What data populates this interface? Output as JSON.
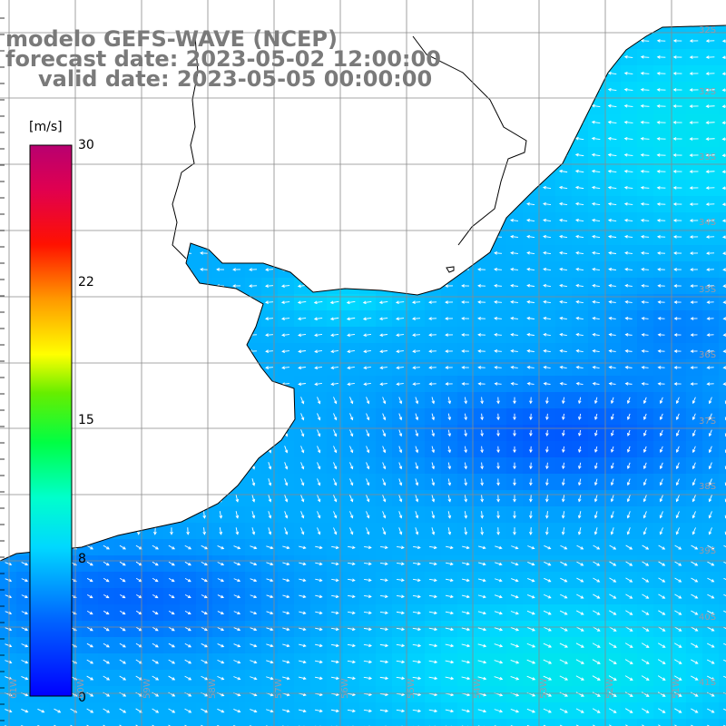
{
  "title": {
    "model": "modelo GEFS-WAVE (NCEP)",
    "forecast": "forecast date: 2023-05-02 12:00:00",
    "valid": "valid date: 2023-05-05 00:00:00"
  },
  "colorbar": {
    "unit": "[m/s]",
    "ticks": [
      "30",
      "22",
      "15",
      "8",
      "0"
    ],
    "tick_values": [
      30,
      22,
      15,
      8,
      0
    ],
    "range": [
      0,
      30
    ],
    "colors": [
      "#0000ff",
      "#00aaff",
      "#00e5ff",
      "#00ff66",
      "#44dd00",
      "#ffff00",
      "#ff9900",
      "#ff2200",
      "#e0004a",
      "#b00070"
    ]
  },
  "lat_labels": [
    "32S",
    "33S",
    "34S",
    "35S",
    "36S",
    "37S",
    "38S",
    "39S",
    "40S",
    "41S"
  ],
  "lon_labels": [
    "61W",
    "60W",
    "59W",
    "58W",
    "57W",
    "56W",
    "55W",
    "54W",
    "53W",
    "52W",
    "51W"
  ],
  "colors": {
    "title": "#7a7a7a",
    "land": "#ffffff",
    "coast": "#000000",
    "grid": "#888888",
    "arrow": "#ffffff"
  }
}
